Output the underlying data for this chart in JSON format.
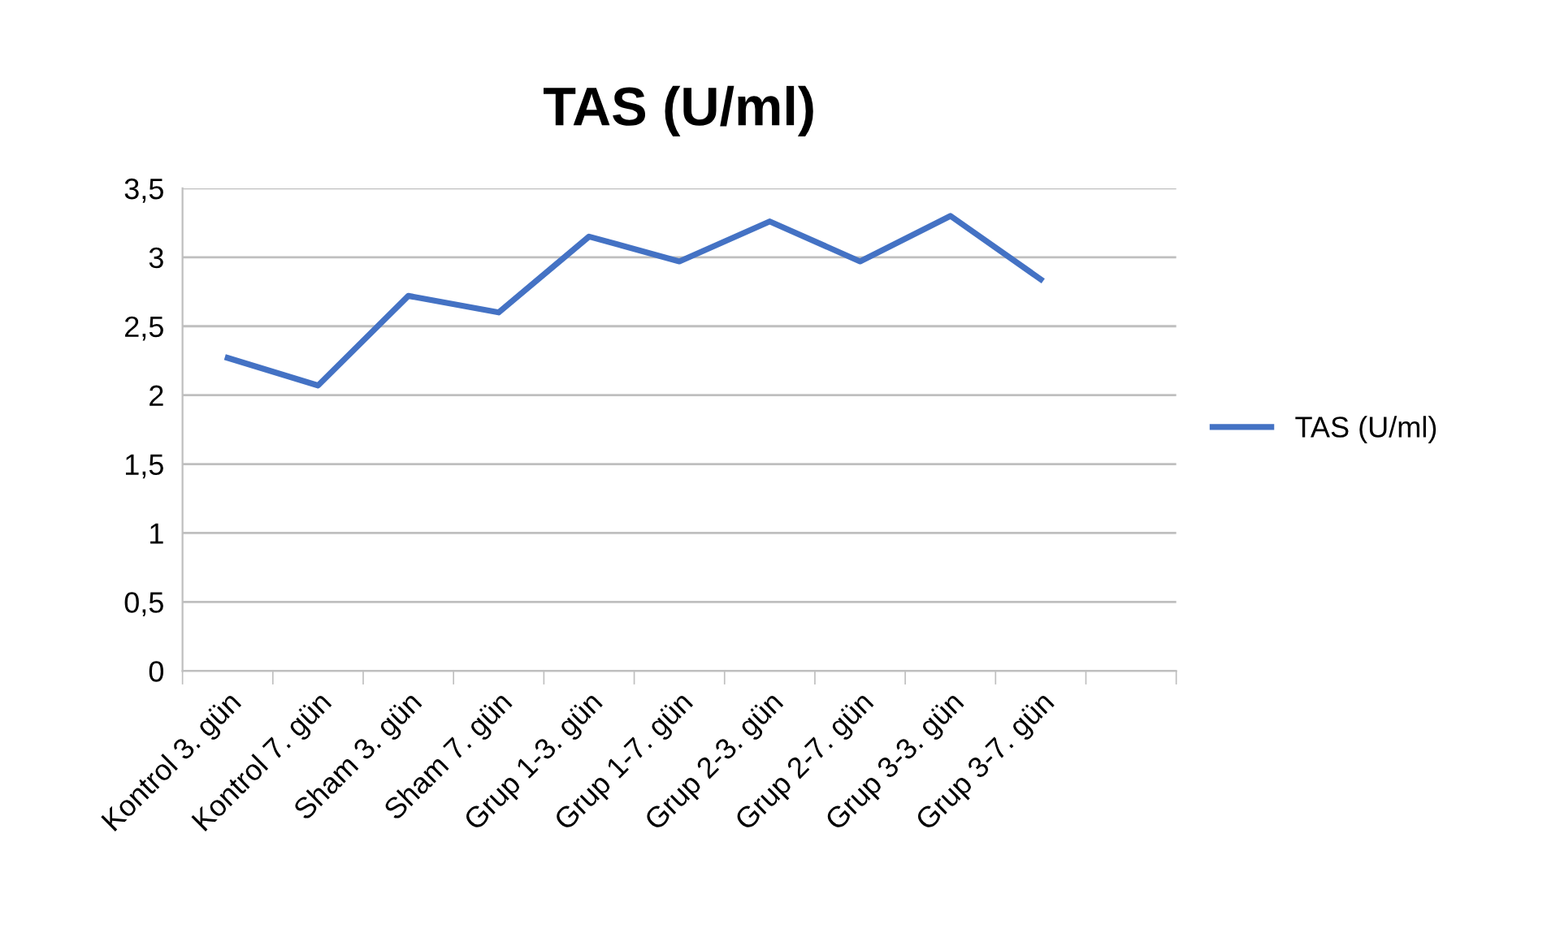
{
  "chart_data": {
    "type": "line",
    "title": "TAS (U/ml)",
    "categories": [
      "Kontrol 3. gün",
      "Kontrol 7. gün",
      "Sham 3. gün",
      "Sham 7. gün",
      "Grup 1-3. gün",
      "Grup 1-7. gün",
      "Grup 2-3. gün",
      "Grup 2-7. gün",
      "Grup 3-3. gün",
      "Grup 3-7. gün",
      null
    ],
    "series": [
      {
        "name": "TAS (U/ml)",
        "color": "#4472c4",
        "values": [
          2.27,
          2.07,
          2.72,
          2.6,
          3.15,
          2.97,
          3.26,
          2.97,
          3.3,
          2.84,
          null
        ]
      }
    ],
    "ylim": [
      0,
      3.5
    ],
    "yticks": [
      0,
      {
        "value": 0.5,
        "label": "0,5"
      },
      1,
      {
        "value": 1.5,
        "label": "1,5"
      },
      2,
      {
        "value": 2.5,
        "label": "2,5"
      },
      3,
      {
        "value": 3.5,
        "label": "3,5"
      }
    ],
    "grid": "y",
    "legend": "right",
    "marker": "none",
    "line_style": "solid"
  }
}
